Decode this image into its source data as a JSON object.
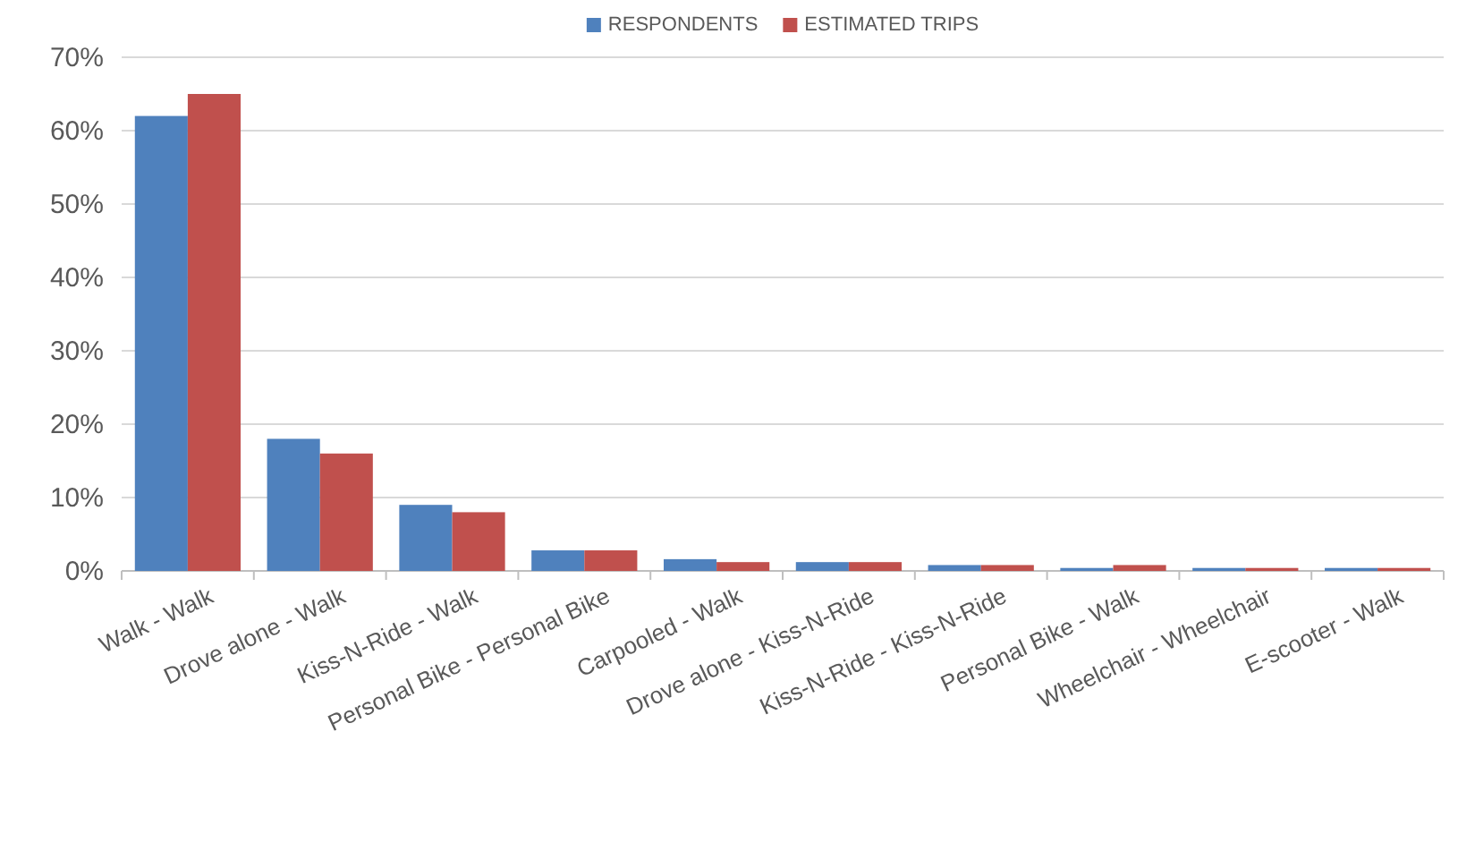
{
  "chart_data": {
    "type": "bar",
    "categories": [
      "Walk - Walk",
      "Drove alone - Walk",
      "Kiss-N-Ride - Walk",
      "Personal Bike - Personal Bike",
      "Carpooled - Walk",
      "Drove alone - Kiss-N-Ride",
      "Kiss-N-Ride - Kiss-N-Ride",
      "Personal Bike - Walk",
      "Wheelchair - Wheelchair",
      "E-scooter - Walk"
    ],
    "series": [
      {
        "name": "RESPONDENTS",
        "color": "#4f81bd",
        "values": [
          62,
          18,
          9,
          2.8,
          1.6,
          1.2,
          0.8,
          0.4,
          0.4,
          0.4
        ]
      },
      {
        "name": "ESTIMATED TRIPS",
        "color": "#c0504d",
        "values": [
          65,
          16,
          8,
          2.8,
          1.2,
          1.2,
          0.8,
          0.8,
          0.4,
          0.4
        ]
      }
    ],
    "ylim": [
      0,
      70
    ],
    "yticks": [
      {
        "value": 0,
        "label": "0%"
      },
      {
        "value": 10,
        "label": "10%"
      },
      {
        "value": 20,
        "label": "20%"
      },
      {
        "value": 30,
        "label": "30%"
      },
      {
        "value": 40,
        "label": "40%"
      },
      {
        "value": 50,
        "label": "50%"
      },
      {
        "value": 60,
        "label": "60%"
      },
      {
        "value": 70,
        "label": "70%"
      }
    ],
    "grid": "y",
    "legend": "top"
  }
}
